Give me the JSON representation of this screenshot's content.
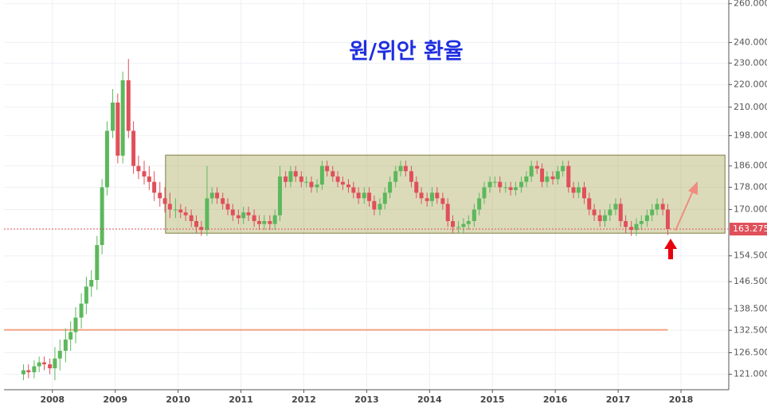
{
  "chart_data": {
    "type": "candlestick",
    "title": "원/위안 환율",
    "log_scale": true,
    "grid": true,
    "up_color": "#5cb85c",
    "down_color": "#e0505a",
    "xlim": [
      2007.23,
      2018.76
    ],
    "xticks": [
      2008,
      2009,
      2010,
      2011,
      2012,
      2013,
      2014,
      2015,
      2016,
      2017,
      2018
    ],
    "ylim": [
      117.2,
      262
    ],
    "yticks": [
      {
        "value": 260,
        "label": "260.000"
      },
      {
        "value": 240,
        "label": "240.000"
      },
      {
        "value": 230,
        "label": "230.000"
      },
      {
        "value": 220,
        "label": "220.000"
      },
      {
        "value": 210,
        "label": "210.000"
      },
      {
        "value": 198,
        "label": "198.000"
      },
      {
        "value": 186,
        "label": "186.000"
      },
      {
        "value": 178,
        "label": "178.000"
      },
      {
        "value": 170,
        "label": "170.000"
      },
      {
        "value": 154.5,
        "label": "154.500"
      },
      {
        "value": 146.5,
        "label": "146.500"
      },
      {
        "value": 138.5,
        "label": "138.500"
      },
      {
        "value": 132.5,
        "label": "132.500"
      },
      {
        "value": 126.5,
        "label": "126.500"
      },
      {
        "value": 121,
        "label": "121.000"
      }
    ],
    "last_price_label": "163.275",
    "band": {
      "x": [
        2009.8,
        2018.7
      ],
      "y": [
        161.9,
        190.2
      ]
    },
    "reference_line": 132.6,
    "x": [
      2007.54,
      2007.62,
      2007.71,
      2007.79,
      2007.87,
      2007.96,
      2008.04,
      2008.12,
      2008.21,
      2008.29,
      2008.37,
      2008.46,
      2008.54,
      2008.62,
      2008.71,
      2008.79,
      2008.87,
      2008.96,
      2009.04,
      2009.12,
      2009.21,
      2009.29,
      2009.37,
      2009.46,
      2009.54,
      2009.62,
      2009.71,
      2009.79,
      2009.87,
      2009.96,
      2010.04,
      2010.12,
      2010.21,
      2010.29,
      2010.37,
      2010.46,
      2010.54,
      2010.62,
      2010.71,
      2010.79,
      2010.87,
      2010.96,
      2011.04,
      2011.12,
      2011.21,
      2011.29,
      2011.37,
      2011.46,
      2011.54,
      2011.62,
      2011.71,
      2011.79,
      2011.87,
      2011.96,
      2012.04,
      2012.12,
      2012.21,
      2012.29,
      2012.37,
      2012.46,
      2012.54,
      2012.62,
      2012.71,
      2012.79,
      2012.87,
      2012.96,
      2013.04,
      2013.12,
      2013.21,
      2013.29,
      2013.37,
      2013.46,
      2013.54,
      2013.62,
      2013.71,
      2013.79,
      2013.87,
      2013.96,
      2014.04,
      2014.12,
      2014.21,
      2014.29,
      2014.37,
      2014.46,
      2014.54,
      2014.62,
      2014.71,
      2014.79,
      2014.87,
      2014.96,
      2015.04,
      2015.12,
      2015.21,
      2015.29,
      2015.37,
      2015.46,
      2015.54,
      2015.62,
      2015.71,
      2015.79,
      2015.87,
      2015.96,
      2016.04,
      2016.12,
      2016.21,
      2016.29,
      2016.37,
      2016.46,
      2016.54,
      2016.62,
      2016.71,
      2016.79,
      2016.87,
      2016.96,
      2017.04,
      2017.12,
      2017.21,
      2017.29,
      2017.37,
      2017.46,
      2017.54,
      2017.62,
      2017.71,
      2017.79
    ],
    "open": [
      121,
      122,
      121.5,
      123,
      124,
      123.5,
      122.5,
      125,
      127,
      130,
      132,
      136,
      140,
      145,
      147,
      158,
      178,
      200,
      212,
      190,
      222,
      200,
      186,
      184,
      182,
      180,
      176,
      174,
      172,
      170,
      170,
      169,
      168,
      166,
      164,
      163,
      174,
      176,
      174,
      172,
      170,
      168,
      167,
      169,
      168,
      166,
      165,
      166,
      165,
      168,
      182,
      180,
      184,
      182,
      180,
      180,
      178,
      179,
      186,
      184,
      182,
      180,
      179,
      178,
      176,
      174,
      176,
      173,
      170,
      172,
      176,
      180,
      184,
      186,
      184,
      180,
      176,
      174,
      173,
      176,
      174,
      172,
      166,
      164,
      164,
      165,
      166,
      170,
      174,
      178,
      180,
      180,
      178,
      178,
      177,
      178,
      180,
      182,
      186,
      185,
      180,
      182,
      181,
      184,
      186,
      178,
      176,
      178,
      174,
      170,
      168,
      166,
      168,
      170,
      172,
      166,
      164,
      163,
      165,
      166,
      168,
      170,
      172,
      170
    ],
    "high": [
      123.5,
      123.5,
      124.5,
      125.5,
      125.5,
      125,
      128,
      130,
      133,
      135,
      139,
      143,
      148,
      150,
      161,
      181,
      204,
      218,
      216,
      226,
      232,
      204,
      190,
      188,
      186,
      184,
      180,
      178,
      176,
      174,
      172,
      171,
      170,
      168,
      166,
      186,
      178,
      178,
      176,
      174,
      172,
      170,
      171,
      171,
      170,
      168,
      168,
      168,
      170,
      186,
      184,
      186,
      186,
      184,
      182,
      182,
      181,
      188,
      188,
      186,
      184,
      182,
      181,
      180,
      178,
      178,
      178,
      175,
      174,
      178,
      182,
      186,
      188,
      188,
      186,
      182,
      178,
      176,
      178,
      178,
      176,
      174,
      168,
      166,
      167,
      168,
      172,
      176,
      180,
      182,
      182,
      182,
      180,
      180,
      180,
      182,
      184,
      188,
      188,
      187,
      184,
      184,
      186,
      188,
      188,
      180,
      180,
      180,
      176,
      172,
      170,
      170,
      172,
      174,
      174,
      168,
      166,
      167,
      168,
      170,
      172,
      174,
      174,
      172
    ],
    "low": [
      119.5,
      120,
      120,
      121.5,
      122,
      121,
      119.5,
      122,
      124,
      127,
      129,
      133,
      137,
      142,
      144,
      155,
      175,
      197,
      187,
      187,
      197,
      183,
      181,
      179,
      177,
      173,
      171,
      169,
      167,
      167,
      167,
      166,
      164,
      162,
      161,
      161,
      172,
      172,
      170,
      168,
      166,
      165,
      165,
      166,
      164,
      163,
      163,
      163,
      163,
      166,
      178,
      178,
      180,
      178,
      178,
      176,
      176,
      177,
      182,
      180,
      178,
      177,
      176,
      174,
      172,
      172,
      171,
      168,
      168,
      170,
      174,
      178,
      182,
      182,
      178,
      174,
      172,
      171,
      171,
      172,
      170,
      164,
      162,
      162,
      162,
      163,
      164,
      168,
      172,
      176,
      178,
      176,
      176,
      175,
      175,
      176,
      178,
      180,
      183,
      178,
      178,
      179,
      179,
      182,
      176,
      174,
      174,
      172,
      168,
      166,
      164,
      164,
      166,
      168,
      164,
      162,
      161,
      161,
      163,
      164,
      166,
      168,
      168,
      161.3
    ],
    "close": [
      122,
      121.5,
      123,
      124,
      123.5,
      122.5,
      125,
      127,
      130,
      132,
      136,
      140,
      145,
      147,
      158,
      178,
      200,
      212,
      190,
      222,
      200,
      186,
      184,
      182,
      180,
      176,
      174,
      172,
      170,
      170,
      169,
      168,
      166,
      164,
      163,
      174,
      176,
      174,
      172,
      170,
      168,
      167,
      169,
      168,
      166,
      165,
      166,
      165,
      168,
      182,
      180,
      184,
      182,
      180,
      180,
      178,
      179,
      186,
      184,
      182,
      180,
      179,
      178,
      176,
      174,
      176,
      173,
      170,
      172,
      176,
      180,
      184,
      186,
      184,
      180,
      176,
      174,
      173,
      176,
      174,
      172,
      166,
      164,
      164,
      165,
      166,
      170,
      174,
      178,
      180,
      180,
      178,
      178,
      177,
      178,
      180,
      182,
      186,
      185,
      180,
      182,
      181,
      184,
      186,
      178,
      176,
      178,
      174,
      170,
      168,
      166,
      168,
      170,
      172,
      166,
      164,
      163,
      165,
      166,
      168,
      170,
      172,
      170,
      163.275
    ]
  }
}
